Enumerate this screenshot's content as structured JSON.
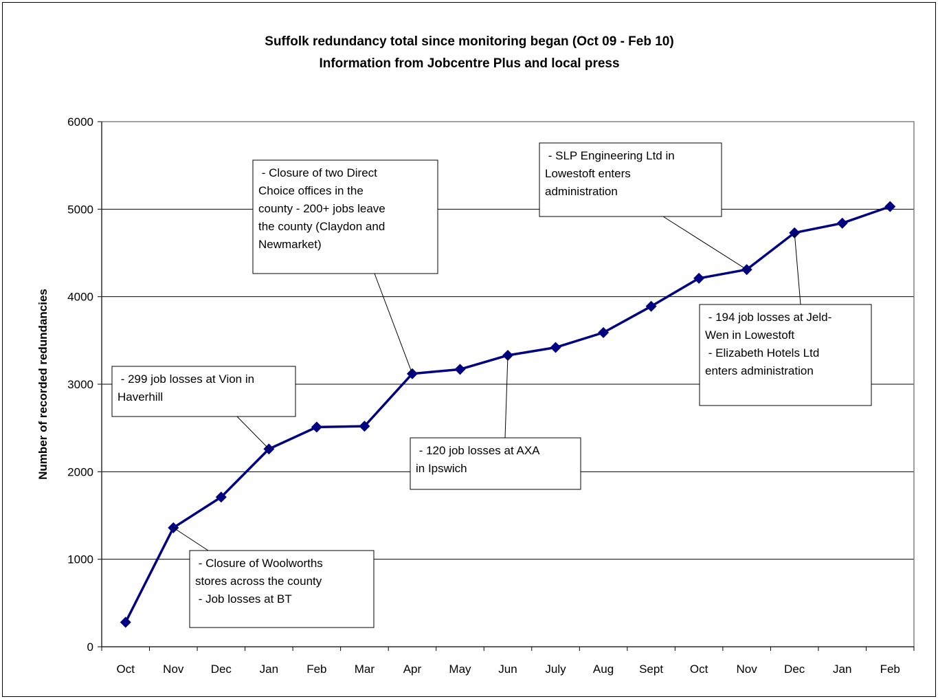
{
  "chart_data": {
    "type": "line",
    "title": "Suffolk redundancy total since monitoring began (Oct 09 - Feb 10)",
    "subtitle": "Information from Jobcentre Plus and local press",
    "y_label": "Number of recorded redundancies",
    "categories": [
      "Oct",
      "Nov",
      "Dec",
      "Jan",
      "Feb",
      "Mar",
      "Apr",
      "May",
      "Jun",
      "July",
      "Aug",
      "Sept",
      "Oct",
      "Nov",
      "Dec",
      "Jan",
      "Feb"
    ],
    "values": [
      280,
      1360,
      1710,
      2260,
      2510,
      2520,
      3120,
      3170,
      3330,
      3420,
      3590,
      3890,
      4210,
      4310,
      4730,
      4840,
      5030
    ],
    "color": "#000080",
    "ylim": [
      0,
      6000
    ],
    "yticks": [
      0,
      1000,
      2000,
      3000,
      4000,
      5000,
      6000
    ],
    "grid": true,
    "annotations": [
      [
        " - Closure of two Direct",
        "Choice offices in the",
        "county - 200+ jobs leave",
        "the county (Claydon and",
        "Newmarket)"
      ],
      [
        " - SLP Engineering Ltd in",
        "Lowestoft enters",
        "administration"
      ],
      [
        " - 194 job losses at Jeld-",
        "Wen in Lowestoft",
        " - Elizabeth Hotels Ltd",
        "enters administration"
      ],
      [
        " - 299 job losses at Vion in",
        "Haverhill"
      ],
      [
        " - 120 job losses at AXA",
        "in Ipswich"
      ],
      [
        " - Closure of Woolworths",
        "stores across the county",
        " - Job losses at BT"
      ]
    ]
  }
}
